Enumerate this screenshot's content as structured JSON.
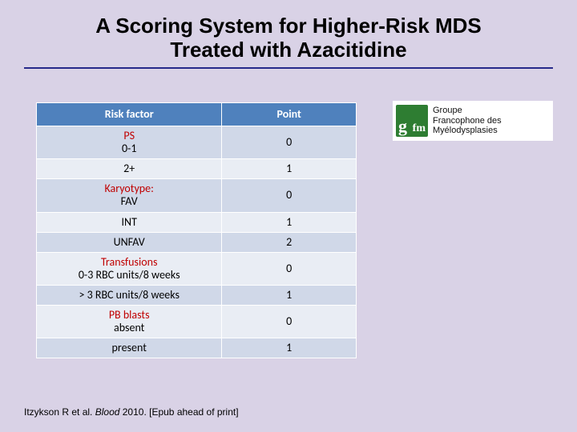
{
  "title_line1": "A Scoring System for Higher-Risk MDS",
  "title_line2": "Treated with Azacitidine",
  "table": {
    "header": {
      "factor": "Risk factor",
      "point": "Point"
    },
    "rows": [
      {
        "cat": "PS",
        "sub": "0-1",
        "point": "0",
        "shade": "light"
      },
      {
        "cat": "",
        "sub": "2+",
        "point": "1",
        "shade": "dark"
      },
      {
        "cat": "Karyotype:",
        "sub": "FAV",
        "point": "0",
        "shade": "light"
      },
      {
        "cat": "",
        "sub": "INT",
        "point": "1",
        "shade": "dark"
      },
      {
        "cat": "",
        "sub": "UNFAV",
        "point": "2",
        "shade": "light"
      },
      {
        "cat": "Transfusions",
        "sub": "0-3 RBC units/8 weeks",
        "point": "0",
        "shade": "dark"
      },
      {
        "cat": "",
        "sub": "> 3 RBC units/8 weeks",
        "point": "1",
        "shade": "light"
      },
      {
        "cat": "PB blasts",
        "sub": "absent",
        "point": "0",
        "shade": "dark"
      },
      {
        "cat": "",
        "sub": "present",
        "point": "1",
        "shade": "light"
      }
    ]
  },
  "logo": {
    "line1": "Groupe",
    "line2": "Francophone des",
    "line3": "Myélodysplasies"
  },
  "citation": {
    "authors": "Itzykson R et al.",
    "journal": "Blood",
    "rest": " 2010. [Epub ahead of print]"
  },
  "colors": {
    "background": "#d9d2e6",
    "rule": "#262a8a",
    "th_bg": "#4f81bd",
    "row_light": "#d0d8e8",
    "row_dark": "#e9edf4",
    "category_text": "#c00000"
  }
}
